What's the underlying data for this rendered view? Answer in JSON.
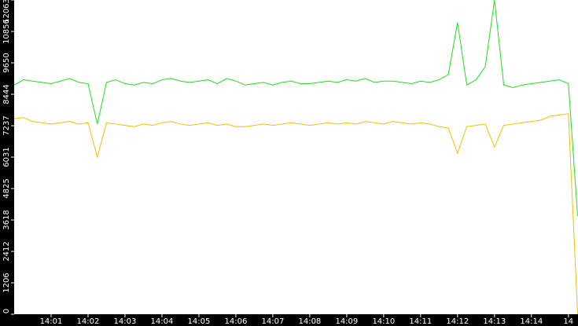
{
  "chart_data": {
    "type": "line",
    "x": [
      0,
      0.25,
      0.5,
      0.75,
      1,
      1.25,
      1.5,
      1.75,
      2,
      2.25,
      2.5,
      2.75,
      3,
      3.25,
      3.5,
      3.75,
      4,
      4.25,
      4.5,
      4.75,
      5,
      5.25,
      5.5,
      5.75,
      6,
      6.25,
      6.5,
      6.75,
      7,
      7.25,
      7.5,
      7.75,
      8,
      8.25,
      8.5,
      8.75,
      9,
      9.25,
      9.5,
      9.75,
      10,
      10.25,
      10.5,
      10.75,
      11,
      11.25,
      11.5,
      11.75,
      12,
      12.25,
      12.5,
      12.75,
      13,
      13.25,
      13.5,
      13.75,
      14,
      14.25,
      14.5,
      14.75,
      15,
      15.25
    ],
    "series": [
      {
        "color": "#22dd22",
        "values": [
          8800,
          9000,
          8950,
          8900,
          8850,
          8950,
          9050,
          8900,
          8850,
          7300,
          8900,
          9000,
          8850,
          8800,
          8900,
          8850,
          9000,
          9050,
          8950,
          8900,
          8950,
          9000,
          8850,
          9050,
          8950,
          8800,
          8850,
          8900,
          8800,
          8900,
          8950,
          8850,
          8850,
          8900,
          8950,
          8900,
          9000,
          8950,
          9050,
          8900,
          8950,
          8950,
          8900,
          8850,
          8950,
          8900,
          9000,
          9200,
          11200,
          8800,
          9000,
          9500,
          12063,
          8800,
          8700,
          8800,
          8850,
          8900,
          8950,
          9000,
          8850,
          3770
        ]
      },
      {
        "color": "#f0c000",
        "values": [
          7500,
          7550,
          7400,
          7350,
          7300,
          7350,
          7400,
          7300,
          7350,
          6031,
          7350,
          7300,
          7250,
          7200,
          7300,
          7250,
          7350,
          7400,
          7300,
          7250,
          7300,
          7350,
          7250,
          7300,
          7200,
          7200,
          7250,
          7300,
          7250,
          7300,
          7350,
          7300,
          7250,
          7300,
          7350,
          7300,
          7350,
          7300,
          7400,
          7350,
          7300,
          7400,
          7350,
          7300,
          7350,
          7300,
          7200,
          7150,
          6180,
          7200,
          7250,
          7300,
          6420,
          7250,
          7300,
          7350,
          7400,
          7450,
          7600,
          7650,
          7700,
          0
        ]
      }
    ],
    "xlim": [
      0,
      15.26
    ],
    "xticks": [
      {
        "value": 1,
        "label": "14:01"
      },
      {
        "value": 2,
        "label": "14:02"
      },
      {
        "value": 3,
        "label": "14:03"
      },
      {
        "value": 4,
        "label": "14:04"
      },
      {
        "value": 5,
        "label": "14:05"
      },
      {
        "value": 6,
        "label": "14:06"
      },
      {
        "value": 7,
        "label": "14:07"
      },
      {
        "value": 8,
        "label": "14:08"
      },
      {
        "value": 9,
        "label": "14:09"
      },
      {
        "value": 10,
        "label": "14:10"
      },
      {
        "value": 11,
        "label": "14:11"
      },
      {
        "value": 12,
        "label": "14:12"
      },
      {
        "value": 13,
        "label": "14:13"
      },
      {
        "value": 14,
        "label": "14:14"
      },
      {
        "value": 15,
        "label": "14"
      }
    ],
    "ylim": [
      0,
      12063
    ],
    "yticks": [
      0,
      1206,
      2412,
      3618,
      4825,
      6031,
      7237,
      8444,
      9650,
      10856,
      12063
    ]
  }
}
